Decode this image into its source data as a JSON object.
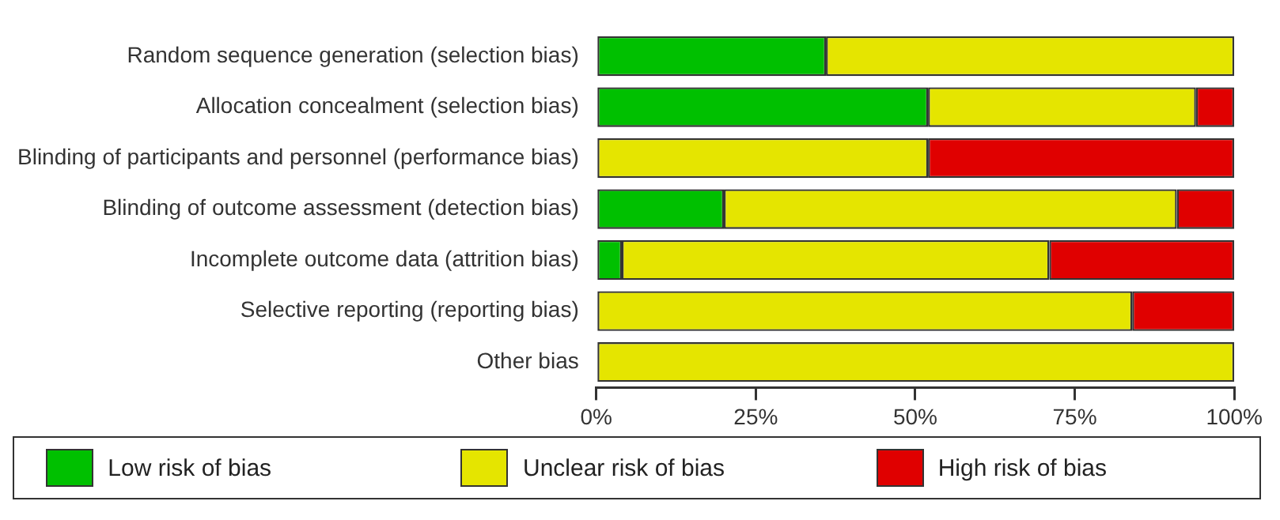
{
  "chart_data": {
    "type": "bar",
    "orientation": "horizontal",
    "stacked": true,
    "categories": [
      "Random sequence generation (selection bias)",
      "Allocation concealment (selection bias)",
      "Blinding of participants and personnel (performance bias)",
      "Blinding of outcome assessment (detection bias)",
      "Incomplete outcome data (attrition bias)",
      "Selective reporting (reporting bias)",
      "Other bias"
    ],
    "series": [
      {
        "name": "Low risk of bias",
        "color": "#00c000",
        "values": [
          36,
          52,
          0,
          20,
          4,
          0,
          0
        ]
      },
      {
        "name": "Unclear risk of bias",
        "color": "#e5e500",
        "values": [
          64,
          42,
          52,
          71,
          67,
          84,
          100
        ]
      },
      {
        "name": "High risk of bias",
        "color": "#e00000",
        "values": [
          0,
          6,
          48,
          9,
          29,
          16,
          0
        ]
      }
    ],
    "xlim": [
      0,
      100
    ],
    "xticks": [
      {
        "value": 0,
        "label": "0%"
      },
      {
        "value": 25,
        "label": "25%"
      },
      {
        "value": 50,
        "label": "50%"
      },
      {
        "value": 75,
        "label": "75%"
      },
      {
        "value": 100,
        "label": "100%"
      }
    ],
    "grid": false,
    "legend": "bottom"
  }
}
